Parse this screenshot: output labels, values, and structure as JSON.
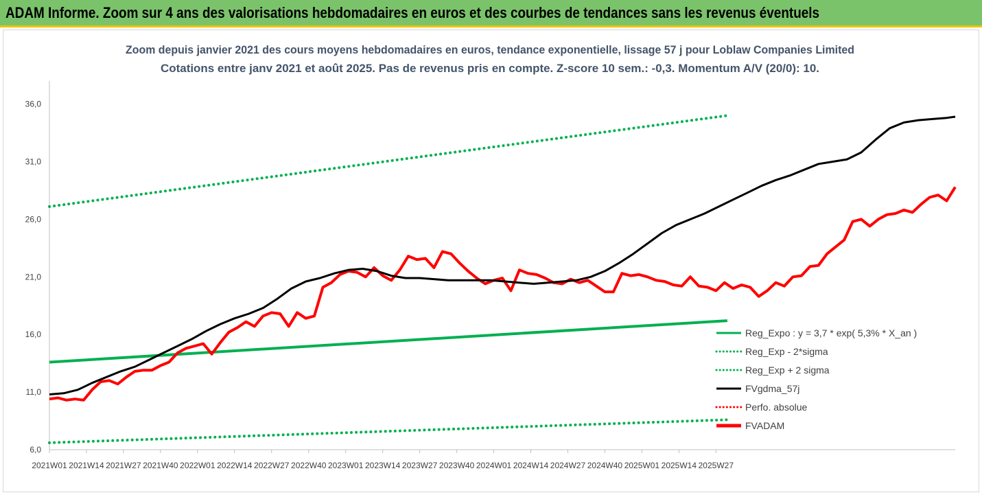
{
  "banner": {
    "title": "ADAM Informe. Zoom sur 4 ans des valorisations hebdomadaires en euros et des courbes de tendances sans les revenus éventuels",
    "background": "#7ac36a"
  },
  "chart_data": {
    "type": "line",
    "title": "Zoom depuis janvier 2021 des cours moyens hebdomadaires en euros, tendance exponentielle, lissage 57 j pour Loblaw Companies Limited",
    "subtitle": "Cotations entre janv 2021 et août 2025.  Pas de revenus pris en compte. Z-score 10 sem.: -0,3. Momentum A/V (20/0): 10.",
    "xlabel": "",
    "ylabel": "",
    "ylim": [
      6,
      38
    ],
    "yticks": [
      "6,0",
      "11,0",
      "16,0",
      "21,0",
      "26,0",
      "31,0",
      "36,0"
    ],
    "ytick_values": [
      6,
      11,
      16,
      21,
      26,
      31,
      36
    ],
    "xticks": [
      "2021W01",
      "2021W14",
      "2021W27",
      "2021W40",
      "2022W01",
      "2022W14",
      "2022W27",
      "2022W40",
      "2023W01",
      "2023W14",
      "2023W27",
      "2023W40",
      "2024W01",
      "2024W14",
      "2024W27",
      "2024W40",
      "2025W01",
      "2025W14",
      "2025W27"
    ],
    "week_count": 239,
    "grid": false,
    "legend_position": "bottom-right",
    "series": [
      {
        "name": "Reg_Expo : y = 3,7 * exp( 5,3% *  X_an )",
        "color": "#00b050",
        "style": "solid",
        "points": [
          [
            0,
            13.6
          ],
          [
            238,
            17.2
          ]
        ]
      },
      {
        "name": "Reg_Exp - 2*sigma",
        "color": "#00b050",
        "style": "dotted",
        "points": [
          [
            0,
            6.6
          ],
          [
            238,
            8.6
          ]
        ]
      },
      {
        "name": "Reg_Exp + 2 sigma",
        "color": "#00b050",
        "style": "dotted",
        "points": [
          [
            0,
            27.1
          ],
          [
            238,
            35.0
          ]
        ]
      },
      {
        "name": "FVgdma_57j",
        "color": "#000000",
        "style": "solid",
        "points": [
          [
            0,
            10.8
          ],
          [
            5,
            10.9
          ],
          [
            10,
            11.2
          ],
          [
            15,
            11.8
          ],
          [
            20,
            12.3
          ],
          [
            25,
            12.8
          ],
          [
            30,
            13.2
          ],
          [
            35,
            13.8
          ],
          [
            40,
            14.4
          ],
          [
            45,
            15.0
          ],
          [
            50,
            15.6
          ],
          [
            55,
            16.3
          ],
          [
            60,
            16.9
          ],
          [
            65,
            17.4
          ],
          [
            70,
            17.8
          ],
          [
            75,
            18.3
          ],
          [
            80,
            19.1
          ],
          [
            85,
            20.0
          ],
          [
            90,
            20.6
          ],
          [
            95,
            20.9
          ],
          [
            100,
            21.3
          ],
          [
            105,
            21.6
          ],
          [
            110,
            21.7
          ],
          [
            115,
            21.5
          ],
          [
            120,
            21.1
          ],
          [
            125,
            20.9
          ],
          [
            130,
            20.9
          ],
          [
            135,
            20.8
          ],
          [
            140,
            20.7
          ],
          [
            145,
            20.7
          ],
          [
            150,
            20.7
          ],
          [
            155,
            20.7
          ],
          [
            160,
            20.6
          ],
          [
            165,
            20.5
          ],
          [
            170,
            20.4
          ],
          [
            175,
            20.5
          ],
          [
            180,
            20.6
          ],
          [
            185,
            20.7
          ],
          [
            190,
            21.0
          ],
          [
            195,
            21.5
          ],
          [
            200,
            22.2
          ],
          [
            205,
            23.0
          ],
          [
            210,
            23.9
          ],
          [
            215,
            24.8
          ],
          [
            220,
            25.5
          ],
          [
            225,
            26.0
          ],
          [
            230,
            26.5
          ],
          [
            235,
            27.1
          ],
          [
            240,
            27.7
          ],
          [
            245,
            28.3
          ],
          [
            250,
            28.9
          ],
          [
            255,
            29.4
          ],
          [
            260,
            29.8
          ],
          [
            265,
            30.3
          ],
          [
            270,
            30.8
          ],
          [
            275,
            31.0
          ],
          [
            280,
            31.2
          ],
          [
            285,
            31.8
          ],
          [
            290,
            32.9
          ],
          [
            295,
            33.9
          ],
          [
            300,
            34.4
          ],
          [
            305,
            34.6
          ],
          [
            310,
            34.7
          ],
          [
            315,
            34.8
          ],
          [
            318,
            34.9
          ]
        ]
      },
      {
        "name": "Perfo. absolue",
        "color": "#ff0000",
        "style": "dotted",
        "points": []
      },
      {
        "name": "FVADAM",
        "color": "#ff0000",
        "style": "solid",
        "points": [
          [
            0,
            10.4
          ],
          [
            3,
            10.5
          ],
          [
            6,
            10.3
          ],
          [
            9,
            10.4
          ],
          [
            12,
            10.3
          ],
          [
            15,
            11.2
          ],
          [
            18,
            11.9
          ],
          [
            21,
            12.0
          ],
          [
            24,
            11.7
          ],
          [
            27,
            12.3
          ],
          [
            30,
            12.8
          ],
          [
            33,
            12.9
          ],
          [
            36,
            12.9
          ],
          [
            39,
            13.3
          ],
          [
            42,
            13.6
          ],
          [
            45,
            14.4
          ],
          [
            48,
            14.8
          ],
          [
            51,
            15.0
          ],
          [
            54,
            15.2
          ],
          [
            57,
            14.3
          ],
          [
            60,
            15.3
          ],
          [
            63,
            16.2
          ],
          [
            66,
            16.6
          ],
          [
            69,
            17.1
          ],
          [
            72,
            16.7
          ],
          [
            75,
            17.6
          ],
          [
            78,
            17.9
          ],
          [
            81,
            17.8
          ],
          [
            84,
            16.7
          ],
          [
            87,
            17.9
          ],
          [
            90,
            17.4
          ],
          [
            93,
            17.6
          ],
          [
            96,
            20.1
          ],
          [
            99,
            20.5
          ],
          [
            102,
            21.2
          ],
          [
            105,
            21.5
          ],
          [
            108,
            21.4
          ],
          [
            111,
            21.0
          ],
          [
            114,
            21.8
          ],
          [
            117,
            21.1
          ],
          [
            120,
            20.7
          ],
          [
            123,
            21.6
          ],
          [
            126,
            22.8
          ],
          [
            129,
            22.5
          ],
          [
            132,
            22.6
          ],
          [
            135,
            21.8
          ],
          [
            138,
            23.2
          ],
          [
            141,
            23.0
          ],
          [
            144,
            22.2
          ],
          [
            147,
            21.5
          ],
          [
            150,
            20.9
          ],
          [
            153,
            20.4
          ],
          [
            156,
            20.7
          ],
          [
            159,
            20.9
          ],
          [
            162,
            19.8
          ],
          [
            165,
            21.6
          ],
          [
            168,
            21.3
          ],
          [
            171,
            21.2
          ],
          [
            174,
            20.9
          ],
          [
            177,
            20.5
          ],
          [
            180,
            20.4
          ],
          [
            183,
            20.8
          ],
          [
            186,
            20.5
          ],
          [
            189,
            20.7
          ],
          [
            192,
            20.2
          ],
          [
            195,
            19.7
          ],
          [
            198,
            19.7
          ],
          [
            201,
            21.3
          ],
          [
            204,
            21.1
          ],
          [
            207,
            21.2
          ],
          [
            210,
            21.0
          ],
          [
            213,
            20.7
          ],
          [
            216,
            20.6
          ],
          [
            219,
            20.3
          ],
          [
            222,
            20.2
          ],
          [
            225,
            21.0
          ],
          [
            228,
            20.2
          ],
          [
            231,
            20.1
          ],
          [
            234,
            19.8
          ],
          [
            237,
            20.5
          ],
          [
            240,
            20.0
          ],
          [
            243,
            20.3
          ],
          [
            246,
            20.1
          ],
          [
            249,
            19.3
          ],
          [
            252,
            19.8
          ],
          [
            255,
            20.5
          ],
          [
            258,
            20.2
          ],
          [
            261,
            21.0
          ],
          [
            264,
            21.1
          ],
          [
            267,
            21.9
          ],
          [
            270,
            22.0
          ],
          [
            273,
            23.0
          ],
          [
            276,
            23.6
          ],
          [
            279,
            24.2
          ],
          [
            282,
            25.8
          ],
          [
            285,
            26.0
          ],
          [
            288,
            25.4
          ],
          [
            291,
            26.0
          ],
          [
            294,
            26.4
          ],
          [
            297,
            26.5
          ],
          [
            300,
            26.8
          ],
          [
            303,
            26.6
          ],
          [
            306,
            27.3
          ],
          [
            309,
            27.9
          ],
          [
            312,
            28.1
          ],
          [
            315,
            27.6
          ],
          [
            318,
            28.8
          ]
        ]
      }
    ]
  },
  "legend": [
    {
      "label": "Reg_Expo : y = 3,7 * exp( 5,3% *  X_an )",
      "color": "#00b050",
      "style": "solid"
    },
    {
      "label": "Reg_Exp - 2*sigma",
      "color": "#00b050",
      "style": "dotted"
    },
    {
      "label": "Reg_Exp + 2 sigma",
      "color": "#00b050",
      "style": "dotted"
    },
    {
      "label": "FVgdma_57j",
      "color": "#000000",
      "style": "solid"
    },
    {
      "label": "Perfo. absolue",
      "color": "#ff0000",
      "style": "dotted"
    },
    {
      "label": "FVADAM",
      "color": "#ff0000",
      "style": "solid"
    }
  ]
}
